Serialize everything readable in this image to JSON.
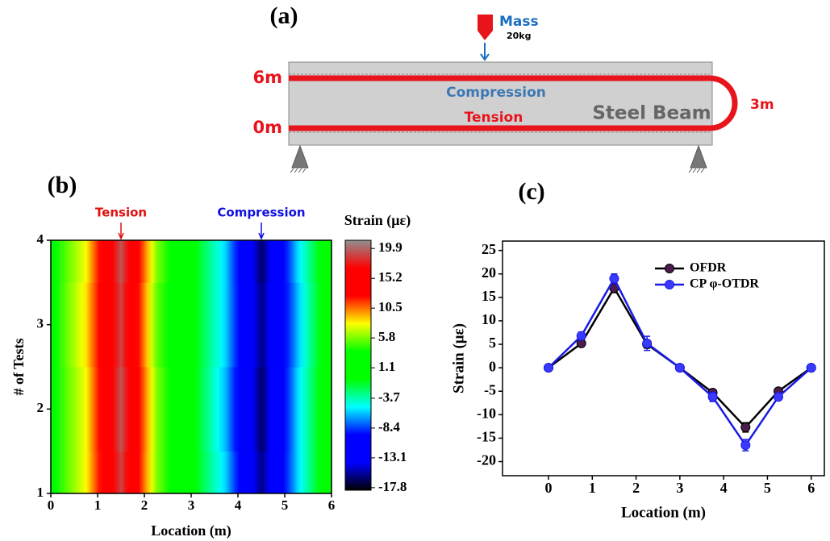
{
  "diagram": {
    "label": "(a)",
    "mass": "Mass",
    "mass_weight": "20kg",
    "top_length": "6m",
    "bottom_length": "0m",
    "loop_length": "3m",
    "top_side": "Compression",
    "bottom_side": "Tension",
    "beam": "Steel Beam"
  },
  "chart_data": [
    {
      "type": "heatmap",
      "label": "(b)",
      "xlabel": "Location (m)",
      "ylabel": "# of Tests",
      "colorbar_title": "Strain (με)",
      "x": [
        0,
        0.75,
        1.5,
        2.25,
        3,
        3.75,
        4.5,
        5.25,
        6
      ],
      "y": [
        1,
        2,
        3,
        4
      ],
      "values": [
        [
          3,
          8,
          19,
          6,
          0,
          -6,
          -16,
          -6,
          2
        ],
        [
          3,
          8,
          19.5,
          6,
          0,
          -6.5,
          -16.5,
          -6,
          2
        ],
        [
          3,
          8.5,
          19,
          5.5,
          0,
          -6,
          -16,
          -6.5,
          2
        ],
        [
          3,
          8,
          19.5,
          6,
          0,
          -6,
          -16.5,
          -6,
          2
        ]
      ],
      "xlim": [
        0,
        6
      ],
      "xticks": [
        0,
        1,
        2,
        3,
        4,
        5,
        6
      ],
      "ylim": [
        1,
        4
      ],
      "yticks": [
        1,
        2,
        3,
        4
      ],
      "clim": [
        -18.2,
        21.2
      ],
      "cticks": [
        19.9,
        15.2,
        10.5,
        5.8,
        1.1,
        -3.7,
        -8.4,
        -13.1,
        -17.8
      ],
      "colormap": [
        "#000000",
        "#0000ff",
        "#0000ff",
        "#00ffff",
        "#00ff00",
        "#00ff00",
        "#ffff00",
        "#ff0000",
        "#ff0000",
        "#909090"
      ],
      "annotations": [
        {
          "text": "Tension",
          "x": 1.5,
          "color": "#e01010"
        },
        {
          "text": "Compression",
          "x": 4.5,
          "color": "#1010e0"
        }
      ]
    },
    {
      "type": "line",
      "label": "(c)",
      "xlabel": "Location (m)",
      "ylabel": "Strain (με)",
      "x": [
        0,
        0.75,
        1.5,
        2.25,
        3,
        3.75,
        4.5,
        5.25,
        6
      ],
      "series": [
        {
          "name": "OFDR",
          "color": "#000000",
          "marker_color": "#4b1c4b",
          "values": [
            0,
            5.2,
            17,
            5,
            0,
            -5.3,
            -12.7,
            -5,
            0
          ],
          "errors": [
            0.3,
            0.6,
            1,
            0.8,
            0.3,
            0.7,
            1,
            0.6,
            0.3
          ]
        },
        {
          "name": "CP φ-OTDR",
          "color": "#1a1ae6",
          "marker_color": "#3a3aff",
          "values": [
            0,
            6.8,
            19,
            5.2,
            0,
            -6.2,
            -16.5,
            -6.2,
            0
          ],
          "errors": [
            0.3,
            0.8,
            1,
            1.5,
            0.3,
            1,
            1.2,
            0.6,
            0.3
          ]
        }
      ],
      "xlim": [
        -1.05,
        6.3
      ],
      "xticks": [
        0,
        1,
        2,
        3,
        4,
        5,
        6
      ],
      "ylim": [
        -23,
        27
      ],
      "yticks": [
        -20,
        -15,
        -10,
        -5,
        0,
        5,
        10,
        15,
        20,
        25
      ]
    }
  ]
}
